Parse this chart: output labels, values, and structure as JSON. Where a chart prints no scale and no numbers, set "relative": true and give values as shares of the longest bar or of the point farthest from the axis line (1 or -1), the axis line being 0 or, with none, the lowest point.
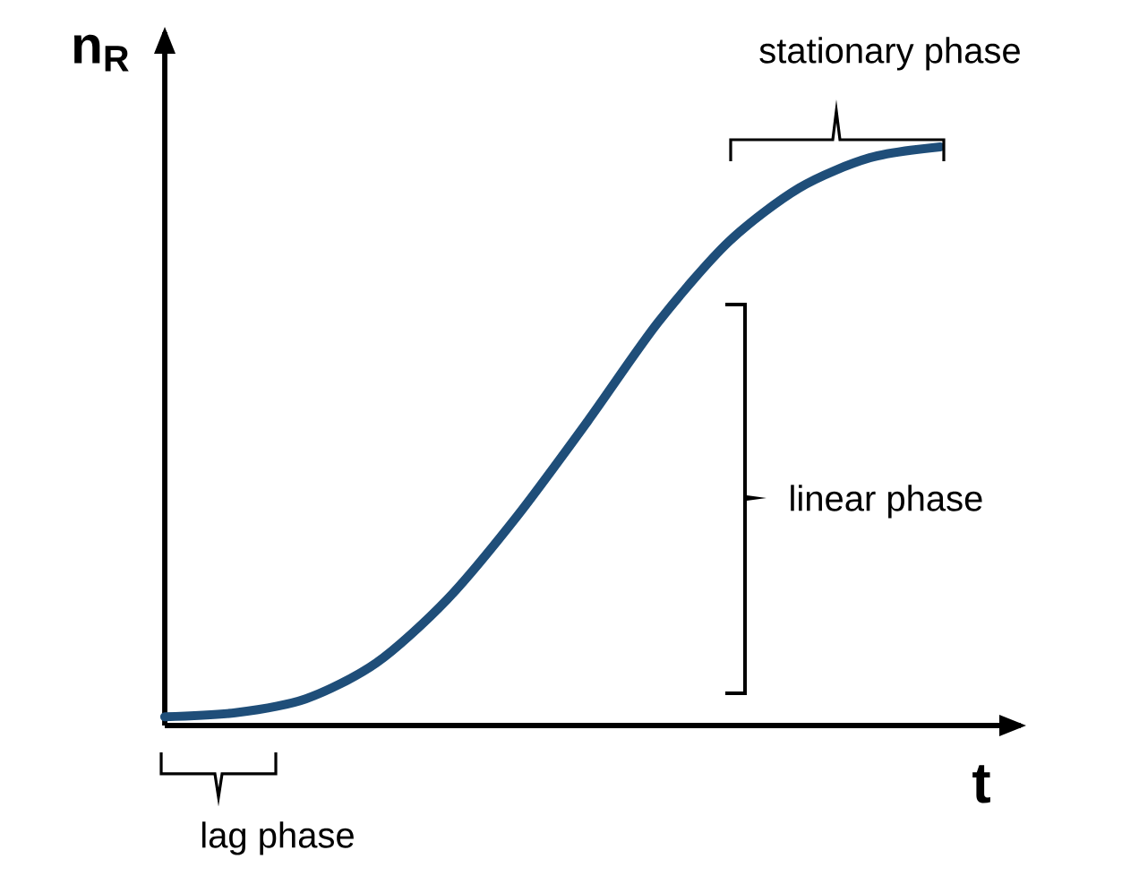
{
  "chart_data": {
    "type": "line",
    "relative": true,
    "xlabel": "t",
    "ylabel": "n$_{R}$",
    "color": "#1f4e79",
    "marker": "none",
    "categories": [
      null,
      null,
      null,
      null,
      null,
      null,
      null,
      null,
      null,
      null,
      null,
      null
    ],
    "values": [
      0.015,
      0.022,
      0.046,
      0.108,
      0.217,
      0.362,
      0.526,
      0.697,
      0.836,
      0.929,
      0.981,
      1
    ],
    "annotations": [
      "stationary phase",
      "linear phase",
      "lag phase"
    ]
  }
}
